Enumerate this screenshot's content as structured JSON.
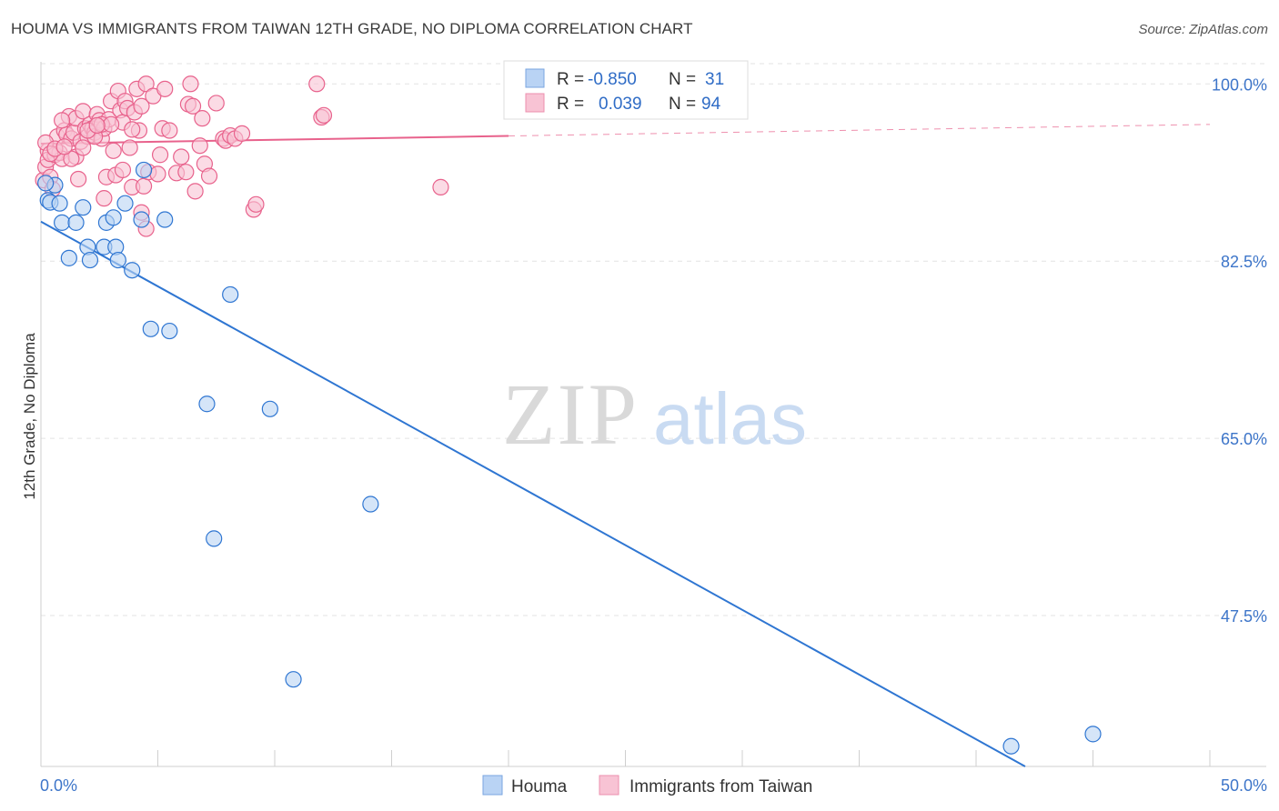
{
  "title": "HOUMA VS IMMIGRANTS FROM TAIWAN 12TH GRADE, NO DIPLOMA CORRELATION CHART",
  "source": "Source: ZipAtlas.com",
  "watermark": {
    "zip": "ZIP",
    "atlas": "atlas"
  },
  "colors": {
    "houma": "#2f76d2",
    "houma_fill": "#b9d3f4",
    "taiwan": "#e8628c",
    "taiwan_fill": "#f8c3d4",
    "grid": "#e3e3e3",
    "tick_label": "#3d75c9"
  },
  "stats": {
    "houma": {
      "r_label": "R =",
      "r": "-0.850",
      "n_label": "N =",
      "n": "31"
    },
    "taiwan": {
      "r_label": "R =",
      "r": "0.039",
      "n_label": "N =",
      "n": "94"
    }
  },
  "chart_data": {
    "type": "scatter",
    "title": "HOUMA VS IMMIGRANTS FROM TAIWAN 12TH GRADE, NO DIPLOMA CORRELATION CHART",
    "xlabel": "",
    "ylabel": "12th Grade, No Diploma",
    "xlim": [
      0,
      50
    ],
    "ylim": [
      32.6,
      102
    ],
    "x_tick_labels": [
      "0.0%",
      "50.0%"
    ],
    "y_ticks": [
      47.5,
      65.0,
      82.5,
      100.0
    ],
    "y_tick_labels": [
      "47.5%",
      "65.0%",
      "82.5%",
      "100.0%"
    ],
    "grid": true,
    "legend_position": "bottom",
    "series": [
      {
        "name": "Houma",
        "points": [
          [
            0.3,
            88.5
          ],
          [
            0.4,
            88.3
          ],
          [
            0.6,
            90.0
          ],
          [
            0.8,
            88.2
          ],
          [
            0.9,
            86.3
          ],
          [
            1.2,
            82.8
          ],
          [
            1.5,
            86.3
          ],
          [
            1.8,
            87.8
          ],
          [
            2.0,
            83.9
          ],
          [
            2.1,
            82.6
          ],
          [
            2.7,
            83.9
          ],
          [
            2.8,
            86.3
          ],
          [
            3.1,
            86.8
          ],
          [
            3.2,
            83.9
          ],
          [
            3.3,
            82.6
          ],
          [
            3.6,
            88.2
          ],
          [
            3.9,
            81.6
          ],
          [
            4.3,
            86.6
          ],
          [
            4.4,
            91.5
          ],
          [
            4.7,
            75.8
          ],
          [
            5.3,
            86.6
          ],
          [
            5.5,
            75.6
          ],
          [
            7.1,
            68.4
          ],
          [
            7.4,
            55.1
          ],
          [
            8.1,
            79.2
          ],
          [
            9.8,
            67.9
          ],
          [
            10.8,
            41.2
          ],
          [
            14.1,
            58.5
          ],
          [
            41.5,
            34.6
          ],
          [
            45.0,
            35.8
          ],
          [
            0.2,
            90.2
          ]
        ],
        "trend": {
          "x": [
            0,
            42.1
          ],
          "y": [
            86.4,
            32.6
          ]
        }
      },
      {
        "name": "Immigrants from Taiwan",
        "points": [
          [
            0.1,
            90.5
          ],
          [
            0.2,
            91.8
          ],
          [
            0.3,
            93.4
          ],
          [
            0.3,
            92.5
          ],
          [
            0.4,
            90.8
          ],
          [
            0.5,
            89.6
          ],
          [
            0.6,
            93.0
          ],
          [
            0.7,
            94.8
          ],
          [
            0.8,
            93.2
          ],
          [
            0.9,
            92.6
          ],
          [
            1.0,
            95.4
          ],
          [
            1.1,
            95.0
          ],
          [
            1.2,
            96.8
          ],
          [
            1.3,
            94.6
          ],
          [
            1.4,
            95.2
          ],
          [
            1.5,
            96.6
          ],
          [
            1.5,
            92.8
          ],
          [
            1.6,
            90.6
          ],
          [
            1.7,
            94.3
          ],
          [
            1.8,
            97.3
          ],
          [
            1.9,
            95.6
          ],
          [
            2.0,
            94.8
          ],
          [
            2.1,
            96.0
          ],
          [
            2.2,
            95.6
          ],
          [
            2.3,
            95.2
          ],
          [
            2.4,
            97.0
          ],
          [
            2.5,
            96.4
          ],
          [
            2.6,
            94.6
          ],
          [
            2.7,
            88.7
          ],
          [
            2.7,
            95.6
          ],
          [
            2.8,
            90.8
          ],
          [
            2.9,
            96.5
          ],
          [
            3.0,
            98.3
          ],
          [
            3.1,
            93.4
          ],
          [
            3.2,
            91.0
          ],
          [
            3.3,
            99.3
          ],
          [
            3.4,
            97.4
          ],
          [
            3.5,
            96.2
          ],
          [
            3.6,
            98.3
          ],
          [
            3.7,
            97.6
          ],
          [
            3.8,
            93.7
          ],
          [
            3.9,
            89.8
          ],
          [
            4.0,
            97.2
          ],
          [
            4.1,
            99.5
          ],
          [
            4.2,
            95.4
          ],
          [
            4.3,
            97.8
          ],
          [
            4.4,
            89.9
          ],
          [
            4.5,
            85.7
          ],
          [
            4.5,
            100.0
          ],
          [
            4.6,
            91.3
          ],
          [
            4.8,
            98.8
          ],
          [
            5.0,
            91.1
          ],
          [
            5.2,
            95.6
          ],
          [
            5.3,
            99.5
          ],
          [
            5.5,
            95.4
          ],
          [
            5.8,
            91.2
          ],
          [
            6.0,
            92.8
          ],
          [
            6.2,
            91.3
          ],
          [
            6.3,
            98.0
          ],
          [
            6.4,
            100.0
          ],
          [
            6.5,
            97.8
          ],
          [
            6.6,
            89.4
          ],
          [
            6.8,
            93.9
          ],
          [
            6.9,
            96.6
          ],
          [
            7.0,
            92.1
          ],
          [
            7.2,
            90.9
          ],
          [
            7.5,
            98.1
          ],
          [
            7.8,
            94.6
          ],
          [
            7.9,
            94.4
          ],
          [
            8.1,
            94.9
          ],
          [
            8.3,
            94.6
          ],
          [
            8.6,
            95.1
          ],
          [
            9.1,
            87.6
          ],
          [
            9.2,
            88.1
          ],
          [
            11.8,
            100.0
          ],
          [
            12.0,
            96.7
          ],
          [
            12.1,
            96.9
          ],
          [
            17.1,
            89.8
          ],
          [
            0.2,
            94.2
          ],
          [
            0.4,
            93.1
          ],
          [
            0.9,
            96.4
          ],
          [
            1.3,
            92.6
          ],
          [
            1.8,
            93.7
          ],
          [
            2.3,
            94.8
          ],
          [
            2.6,
            96.0
          ],
          [
            3.0,
            96.0
          ],
          [
            3.5,
            91.5
          ],
          [
            3.9,
            95.5
          ],
          [
            4.3,
            87.3
          ],
          [
            5.1,
            93.0
          ],
          [
            0.6,
            93.6
          ],
          [
            1.0,
            93.8
          ],
          [
            2.0,
            95.4
          ],
          [
            2.4,
            95.9
          ]
        ],
        "trend": {
          "x": [
            0,
            50
          ],
          "y": [
            94.1,
            96.0
          ],
          "solid_until": 20
        }
      }
    ]
  }
}
